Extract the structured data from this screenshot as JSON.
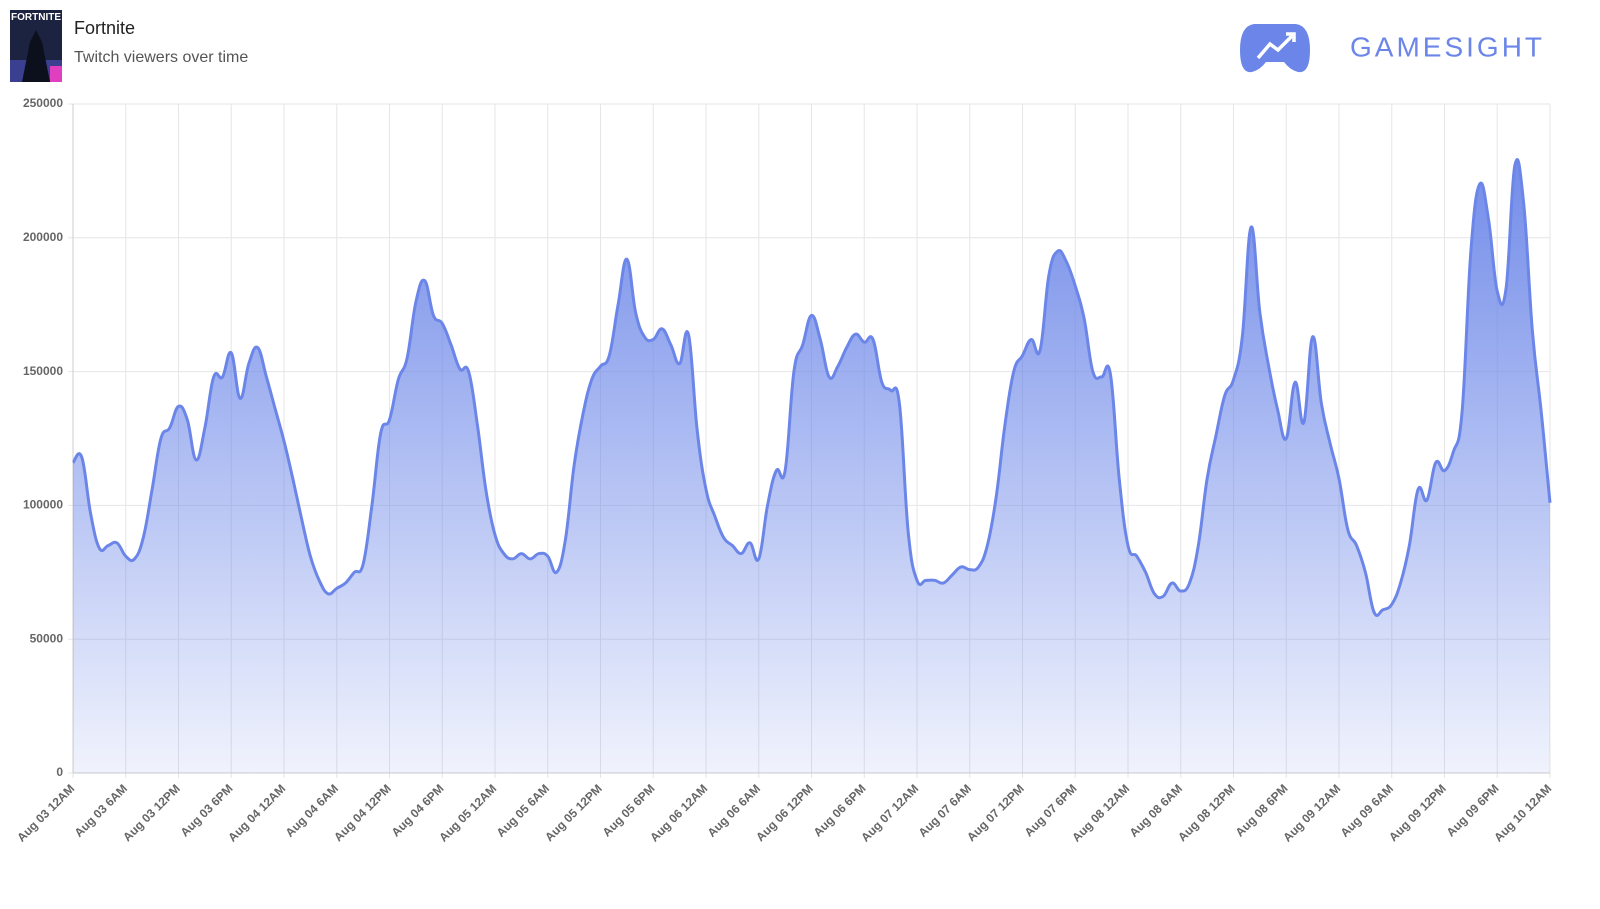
{
  "thumbnail_text": "FORTNITE",
  "brand": "GAMESIGHT",
  "chart_data": {
    "type": "area",
    "title": "Fortnite",
    "subtitle": "Twitch viewers over time",
    "color": "#6b86e8",
    "grid": true,
    "ylim": [
      0,
      250000
    ],
    "yticks": [
      0,
      50000,
      100000,
      150000,
      200000,
      250000
    ],
    "categories": [
      "Aug 03 12AM",
      null,
      null,
      null,
      null,
      null,
      "Aug 03 6AM",
      null,
      null,
      null,
      null,
      null,
      "Aug 03 12PM",
      null,
      null,
      null,
      null,
      null,
      "Aug 03 6PM",
      null,
      null,
      null,
      null,
      null,
      "Aug 04 12AM",
      null,
      null,
      null,
      null,
      null,
      "Aug 04 6AM",
      null,
      null,
      null,
      null,
      null,
      "Aug 04 12PM",
      null,
      null,
      null,
      null,
      null,
      "Aug 04 6PM",
      null,
      null,
      null,
      null,
      null,
      "Aug 05 12AM",
      null,
      null,
      null,
      null,
      null,
      "Aug 05 6AM",
      null,
      null,
      null,
      null,
      null,
      "Aug 05 12PM",
      null,
      null,
      null,
      null,
      null,
      "Aug 05 6PM",
      null,
      null,
      null,
      null,
      null,
      "Aug 06 12AM",
      null,
      null,
      null,
      null,
      null,
      "Aug 06 6AM",
      null,
      null,
      null,
      null,
      null,
      "Aug 06 12PM",
      null,
      null,
      null,
      null,
      null,
      "Aug 06 6PM",
      null,
      null,
      null,
      null,
      null,
      "Aug 07 12AM",
      null,
      null,
      null,
      null,
      null,
      "Aug 07 6AM",
      null,
      null,
      null,
      null,
      null,
      "Aug 07 12PM",
      null,
      null,
      null,
      null,
      null,
      "Aug 07 6PM",
      null,
      null,
      null,
      null,
      null,
      "Aug 08 12AM",
      null,
      null,
      null,
      null,
      null,
      "Aug 08 6AM",
      null,
      null,
      null,
      null,
      null,
      "Aug 08 12PM",
      null,
      null,
      null,
      null,
      null,
      "Aug 08 6PM",
      null,
      null,
      null,
      null,
      null,
      "Aug 09 12AM",
      null,
      null,
      null,
      null,
      null,
      "Aug 09 6AM",
      null,
      null,
      null,
      null,
      null,
      "Aug 09 12PM",
      null,
      null,
      null,
      null,
      null,
      "Aug 09 6PM",
      null,
      null,
      null,
      null,
      null,
      "Aug 10 12AM"
    ],
    "values": [
      116000,
      118000,
      97000,
      84000,
      85000,
      86000,
      81000,
      80000,
      88000,
      106000,
      125000,
      129000,
      137000,
      132000,
      117000,
      129000,
      148000,
      148000,
      157000,
      140000,
      153000,
      159000,
      148000,
      136000,
      124000,
      110000,
      95000,
      81000,
      72000,
      67000,
      69000,
      71000,
      75000,
      78000,
      100000,
      127000,
      132000,
      147000,
      155000,
      176000,
      184000,
      171000,
      168000,
      160000,
      151000,
      150000,
      130000,
      105000,
      89000,
      82000,
      80000,
      82000,
      80000,
      82000,
      81000,
      75000,
      87000,
      115000,
      134000,
      147000,
      152000,
      156000,
      175000,
      192000,
      172000,
      163000,
      162000,
      166000,
      160000,
      153000,
      164000,
      128000,
      106000,
      96000,
      88000,
      85000,
      82000,
      86000,
      80000,
      100000,
      113000,
      113000,
      150000,
      160000,
      171000,
      162000,
      148000,
      152000,
      159000,
      164000,
      161000,
      162000,
      146000,
      143000,
      138000,
      90000,
      72000,
      72000,
      72000,
      71000,
      74000,
      77000,
      76000,
      77000,
      85000,
      103000,
      130000,
      150000,
      156000,
      162000,
      158000,
      186000,
      195000,
      191000,
      182000,
      170000,
      150000,
      148000,
      149000,
      110000,
      85000,
      81000,
      75000,
      67000,
      66000,
      71000,
      68000,
      71000,
      85000,
      110000,
      126000,
      141000,
      147000,
      163000,
      204000,
      172000,
      152000,
      136000,
      125000,
      146000,
      131000,
      163000,
      138000,
      123000,
      110000,
      91000,
      85000,
      75000,
      60000,
      61000,
      63000,
      71000,
      85000,
      106000,
      102000,
      116000,
      113000,
      120000,
      135000,
      195000,
      220000,
      207000,
      180000,
      181000,
      227000,
      213000,
      165000,
      135000,
      101000
    ]
  }
}
